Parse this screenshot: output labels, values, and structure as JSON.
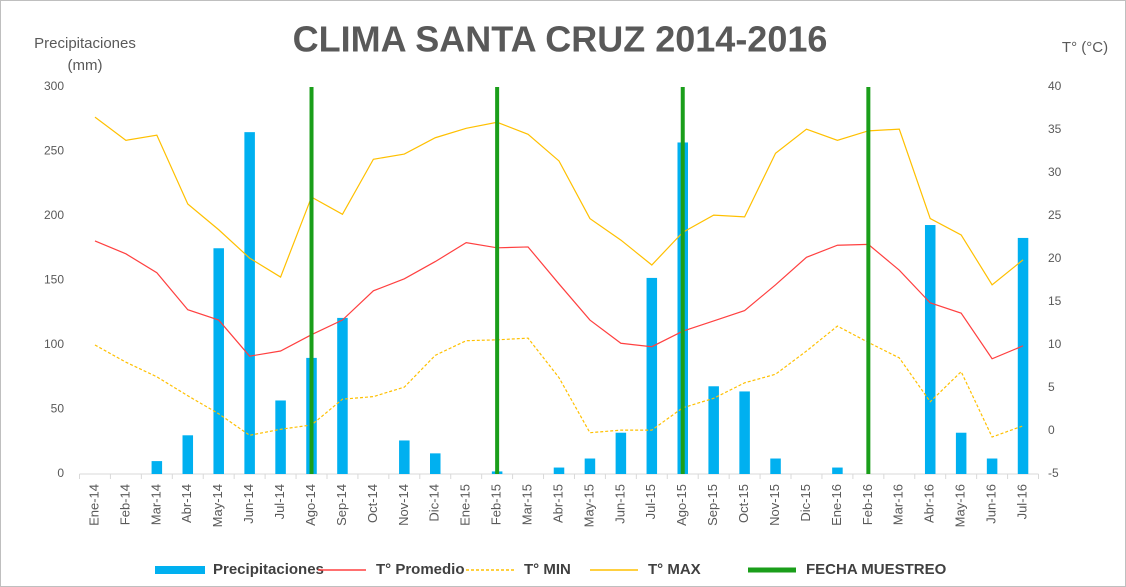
{
  "chart_data": {
    "type": "combo",
    "title": "CLIMA SANTA CRUZ 2014-2016",
    "y_label": [
      "Precipitaciones",
      "(mm)"
    ],
    "y2_label": "T° (°C)",
    "categories": [
      "Ene-14",
      "Feb-14",
      "Mar-14",
      "Abr-14",
      "May-14",
      "Jun-14",
      "Jul-14",
      "Ago-14",
      "Sep-14",
      "Oct-14",
      "Nov-14",
      "Dic-14",
      "Ene-15",
      "Feb-15",
      "Mar-15",
      "Abr-15",
      "May-15",
      "Jun-15",
      "Jul-15",
      "Ago-15",
      "Sep-15",
      "Oct-15",
      "Nov-15",
      "Dic-15",
      "Ene-16",
      "Feb-16",
      "Mar-16",
      "Abr-16",
      "May-16",
      "Jun-16",
      "Jul-16"
    ],
    "series": [
      {
        "name": "Precipitaciones",
        "type": "bar",
        "color": "#00b0f0",
        "axis": "y",
        "values": [
          0,
          0,
          10,
          30,
          175,
          265,
          57,
          90,
          121,
          0,
          26,
          16,
          0,
          2,
          0,
          5,
          12,
          32,
          152,
          257,
          68,
          64,
          12,
          0,
          5,
          0,
          0,
          193,
          32,
          12,
          183
        ]
      },
      {
        "name": "T° Promedio",
        "type": "line",
        "color": "#ff4040",
        "axis": "y2",
        "values": [
          22.1,
          20.6,
          18.4,
          14.1,
          12.9,
          8.7,
          9.3,
          11.2,
          12.9,
          16.3,
          17.7,
          19.7,
          21.9,
          21.3,
          21.4,
          17.1,
          12.9,
          10.2,
          9.8,
          11.6,
          12.8,
          14,
          17,
          20.2,
          21.6,
          21.7,
          18.7,
          14.9,
          13.7,
          8.4,
          9.9
        ]
      },
      {
        "name": "T° MIN",
        "type": "line",
        "dashed": true,
        "color": "#ffc000",
        "axis": "y2",
        "values": [
          10,
          8,
          6.3,
          4.1,
          2,
          -0.5,
          0.2,
          0.7,
          3.7,
          4,
          5.1,
          8.8,
          10.5,
          10.6,
          10.8,
          6.2,
          -0.2,
          0.1,
          0.1,
          2.7,
          3.8,
          5.6,
          6.6,
          9.3,
          12.2,
          10.3,
          8.5,
          3.4,
          6.9,
          -0.7,
          0.6
        ]
      },
      {
        "name": "T° MAX",
        "type": "line",
        "color": "#ffc000",
        "axis": "y2",
        "values": [
          36.5,
          33.8,
          34.4,
          26.4,
          23.4,
          20.1,
          17.9,
          27.2,
          25.2,
          31.6,
          32.2,
          34.1,
          35.2,
          35.9,
          34.5,
          31.4,
          24.7,
          22.2,
          19.3,
          23.1,
          25.1,
          24.9,
          32.3,
          35.1,
          33.8,
          34.9,
          35.1,
          24.7,
          22.8,
          17,
          19.9
        ]
      },
      {
        "name": "FECHA MUESTREO",
        "type": "vline",
        "color": "#1a9e1a",
        "axis": "y",
        "values": [
          null,
          null,
          null,
          null,
          null,
          null,
          null,
          300,
          null,
          null,
          null,
          null,
          null,
          300,
          null,
          null,
          null,
          null,
          null,
          300,
          null,
          null,
          null,
          null,
          null,
          300,
          null,
          null,
          null,
          null,
          null
        ]
      }
    ],
    "ylim": [
      0,
      300
    ],
    "yticks": [
      0,
      50,
      100,
      150,
      200,
      250,
      300
    ],
    "y2lim": [
      -5,
      40
    ],
    "y2ticks": [
      -5,
      0,
      5,
      10,
      15,
      20,
      25,
      30,
      35,
      40
    ],
    "legend": "bottom"
  }
}
